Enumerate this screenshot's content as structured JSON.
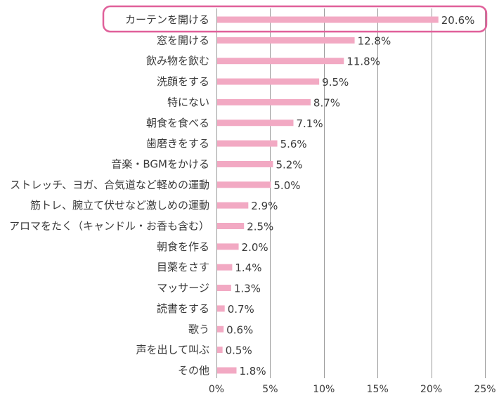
{
  "chart_data": {
    "type": "bar",
    "orientation": "horizontal",
    "categories": [
      "カーテンを開ける",
      "窓を開ける",
      "飲み物を飲む",
      "洗顔をする",
      "特にない",
      "朝食を食べる",
      "歯磨きをする",
      "音楽・BGMをかける",
      "ストレッチ、ヨガ、合気道など軽めの運動",
      "筋トレ、腕立て伏せなど激しめの運動",
      "アロマをたく（キャンドル・お香も含む）",
      "朝食を作る",
      "目薬をさす",
      "マッサージ",
      "読書をする",
      "歌う",
      "声を出して叫ぶ",
      "その他"
    ],
    "values": [
      20.6,
      12.8,
      11.8,
      9.5,
      8.7,
      7.1,
      5.6,
      5.2,
      5.0,
      2.9,
      2.5,
      2.0,
      1.4,
      1.3,
      0.7,
      0.6,
      0.5,
      1.8
    ],
    "value_labels": [
      "20.6%",
      "12.8%",
      "11.8%",
      "9.5%",
      "8.7%",
      "7.1%",
      "5.6%",
      "5.2%",
      "5.0%",
      "2.9%",
      "2.5%",
      "2.0%",
      "1.4%",
      "1.3%",
      "0.7%",
      "0.6%",
      "0.5%",
      "1.8%"
    ],
    "xlim": [
      0,
      25
    ],
    "x_ticks": [
      0,
      5,
      10,
      15,
      20,
      25
    ],
    "x_tick_labels": [
      "0%",
      "5%",
      "10%",
      "15%",
      "20%",
      "25%"
    ],
    "grid": true,
    "highlighted_category": "カーテンを開ける",
    "colors": {
      "bar": "#f2a9c3",
      "highlight_border": "#e0609a",
      "grid": "#9a9a9a",
      "text": "#3a3a3a"
    }
  }
}
